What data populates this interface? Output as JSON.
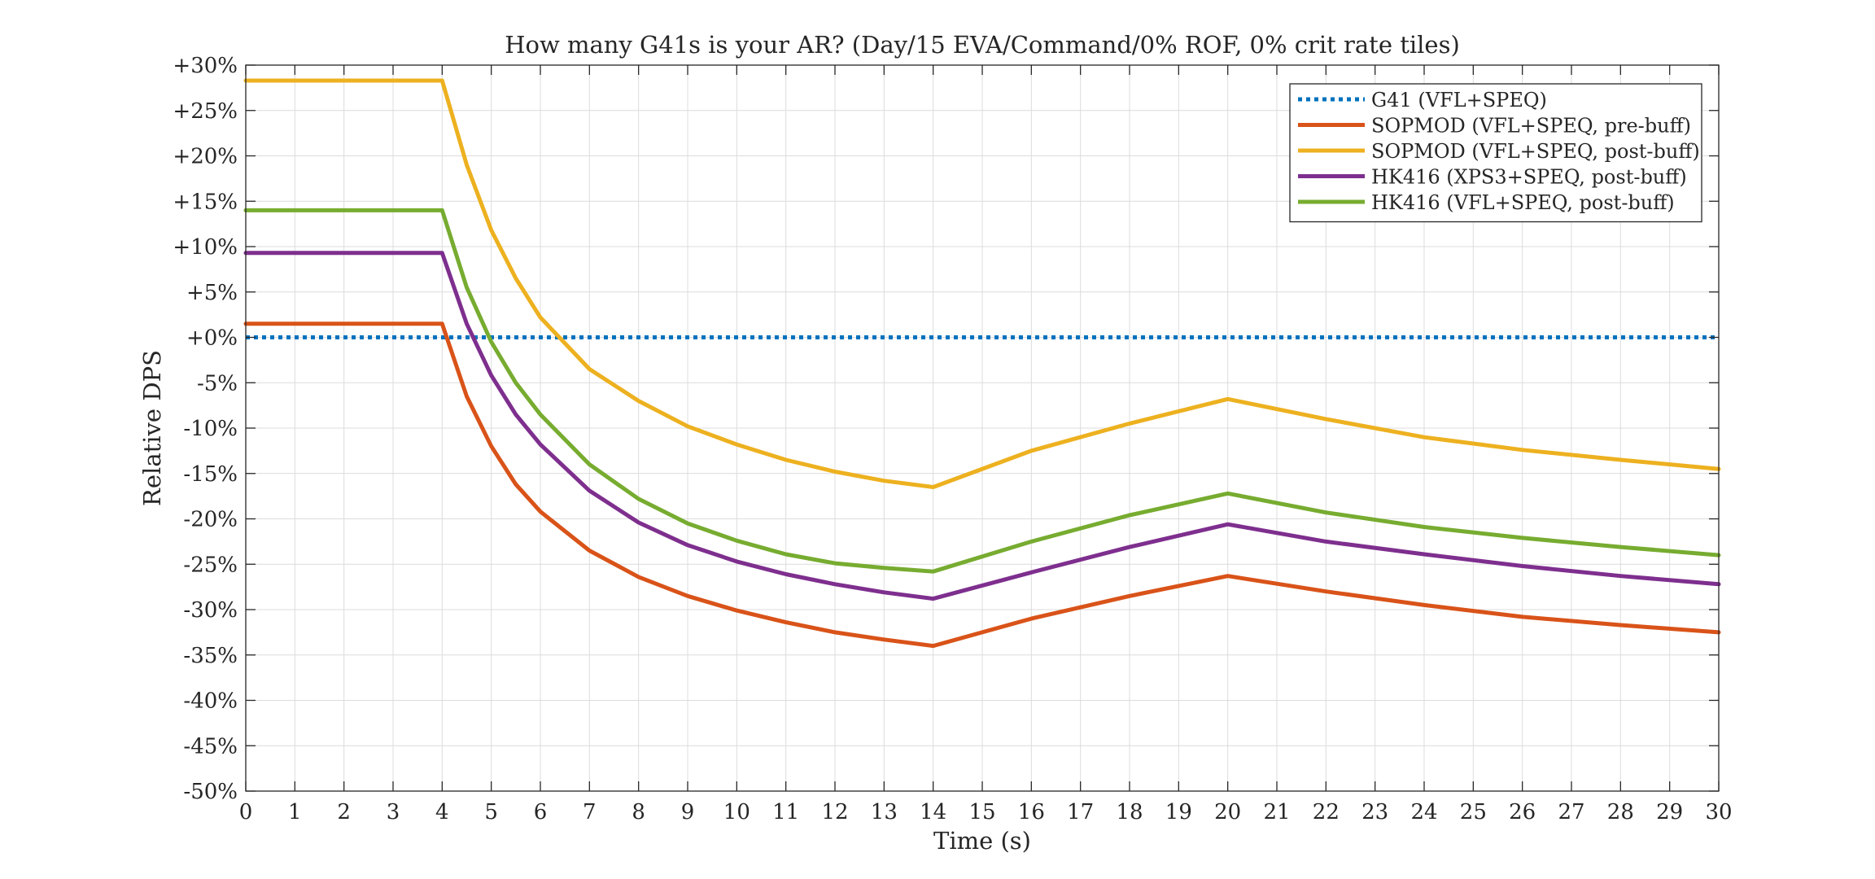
{
  "chart_data": {
    "type": "line",
    "title": "How many G41s is your AR? (Day/15 EVA/Command/0% ROF, 0% crit rate tiles)",
    "xlabel": "Time (s)",
    "ylabel": "Relative DPS",
    "xlim": [
      0,
      30
    ],
    "ylim": [
      -50,
      30
    ],
    "x_ticks": [
      0,
      1,
      2,
      3,
      4,
      5,
      6,
      7,
      8,
      9,
      10,
      11,
      12,
      13,
      14,
      15,
      16,
      17,
      18,
      19,
      20,
      21,
      22,
      23,
      24,
      25,
      26,
      27,
      28,
      29,
      30
    ],
    "y_ticks": [
      30,
      25,
      20,
      15,
      10,
      5,
      0,
      -5,
      -10,
      -15,
      -20,
      -25,
      -30,
      -35,
      -40,
      -45,
      -50
    ],
    "y_tick_labels": [
      "+30%",
      "+25%",
      "+20%",
      "+15%",
      "+10%",
      "+5%",
      "+0%",
      "-5%",
      "-10%",
      "-15%",
      "-20%",
      "-25%",
      "-30%",
      "-35%",
      "-40%",
      "-45%",
      "-50%"
    ],
    "grid": true,
    "legend_position": "top-right",
    "series": [
      {
        "name": "G41 (VFL+SPEQ)",
        "color": "#0072BD",
        "style": "dotted",
        "x": [
          0,
          30
        ],
        "y": [
          0,
          0
        ]
      },
      {
        "name": "SOPMOD (VFL+SPEQ, pre-buff)",
        "color": "#D95319",
        "style": "solid",
        "x": [
          0,
          4,
          4.5,
          5,
          5.5,
          6,
          7,
          8,
          9,
          10,
          11,
          12,
          13,
          14,
          16,
          18,
          20,
          22,
          24,
          26,
          28,
          30
        ],
        "y": [
          1.5,
          1.5,
          -6.5,
          -12,
          -16.2,
          -19.2,
          -23.5,
          -26.4,
          -28.5,
          -30.1,
          -31.4,
          -32.5,
          -33.3,
          -34,
          -31,
          -28.5,
          -26.3,
          -28,
          -29.5,
          -30.8,
          -31.7,
          -32.5
        ]
      },
      {
        "name": "SOPMOD (VFL+SPEQ, post-buff)",
        "color": "#EDB120",
        "style": "solid",
        "x": [
          0,
          4,
          4.5,
          5,
          5.5,
          6,
          7,
          8,
          9,
          10,
          11,
          12,
          13,
          14,
          16,
          18,
          20,
          22,
          24,
          26,
          28,
          30
        ],
        "y": [
          28.3,
          28.3,
          19,
          11.8,
          6.5,
          2.2,
          -3.5,
          -7,
          -9.8,
          -11.8,
          -13.5,
          -14.8,
          -15.8,
          -16.5,
          -12.5,
          -9.5,
          -6.8,
          -9,
          -11,
          -12.4,
          -13.5,
          -14.5
        ]
      },
      {
        "name": "HK416 (XPS3+SPEQ, post-buff)",
        "color": "#7E2F8E",
        "style": "solid",
        "x": [
          0,
          4,
          4.5,
          5,
          5.5,
          6,
          7,
          8,
          9,
          10,
          11,
          12,
          13,
          14,
          16,
          18,
          20,
          22,
          24,
          26,
          28,
          30
        ],
        "y": [
          9.3,
          9.3,
          1.5,
          -4.2,
          -8.5,
          -11.8,
          -16.9,
          -20.4,
          -22.9,
          -24.7,
          -26.1,
          -27.2,
          -28.1,
          -28.8,
          -25.9,
          -23.1,
          -20.6,
          -22.5,
          -23.9,
          -25.2,
          -26.3,
          -27.2
        ]
      },
      {
        "name": "HK416 (VFL+SPEQ, post-buff)",
        "color": "#77AC30",
        "style": "solid",
        "x": [
          0,
          4,
          4.5,
          5,
          5.5,
          6,
          7,
          8,
          9,
          10,
          11,
          12,
          13,
          14,
          16,
          18,
          20,
          22,
          24,
          26,
          28,
          30
        ],
        "y": [
          14,
          14,
          5.5,
          -0.5,
          -5,
          -8.5,
          -14,
          -17.8,
          -20.5,
          -22.4,
          -23.9,
          -24.9,
          -25.4,
          -25.8,
          -22.5,
          -19.6,
          -17.2,
          -19.3,
          -20.9,
          -22.1,
          -23.1,
          -24
        ]
      }
    ]
  }
}
